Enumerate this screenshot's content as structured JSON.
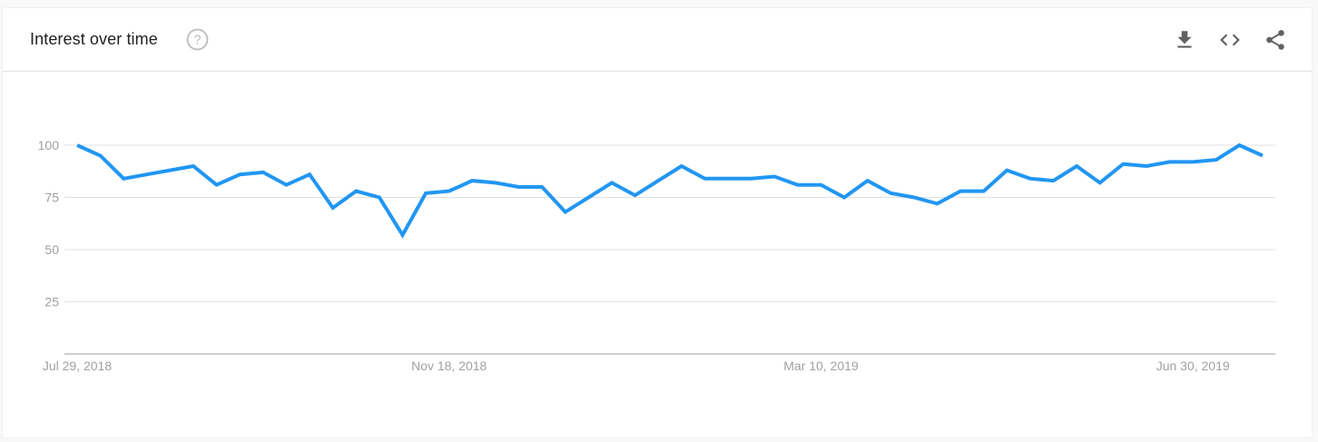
{
  "header": {
    "title": "Interest over time",
    "help_icon": "help-circle-icon",
    "actions": [
      {
        "name": "download",
        "icon": "download-icon"
      },
      {
        "name": "embed",
        "icon": "code-icon"
      },
      {
        "name": "share",
        "icon": "share-icon"
      }
    ]
  },
  "colors": {
    "line": "#2196f3",
    "grid": "#e0e0e0",
    "axis": "#bdbdbd",
    "tick_text": "#a0a0a0",
    "icon": "#616161",
    "help_icon": "#bdbdbd"
  },
  "chart_data": {
    "type": "line",
    "title": "",
    "xlabel": "",
    "ylabel": "",
    "ylim": [
      0,
      100
    ],
    "yticks": [
      25,
      50,
      75,
      100
    ],
    "x_tick_labels": [
      {
        "label": "Jul 29, 2018",
        "index": 0
      },
      {
        "label": "Nov 18, 2018",
        "index": 16
      },
      {
        "label": "Mar 10, 2019",
        "index": 32
      },
      {
        "label": "Jun 30, 2019",
        "index": 48
      }
    ],
    "grid": true,
    "series": [
      {
        "values": [
          100,
          95,
          84,
          86,
          88,
          90,
          81,
          86,
          87,
          81,
          86,
          70,
          78,
          75,
          57,
          77,
          78,
          83,
          82,
          80,
          80,
          68,
          75,
          82,
          76,
          83,
          90,
          84,
          84,
          84,
          85,
          81,
          81,
          75,
          83,
          77,
          75,
          72,
          78,
          78,
          88,
          84,
          83,
          90,
          82,
          91,
          90,
          92,
          92,
          93,
          100,
          95
        ]
      }
    ]
  }
}
